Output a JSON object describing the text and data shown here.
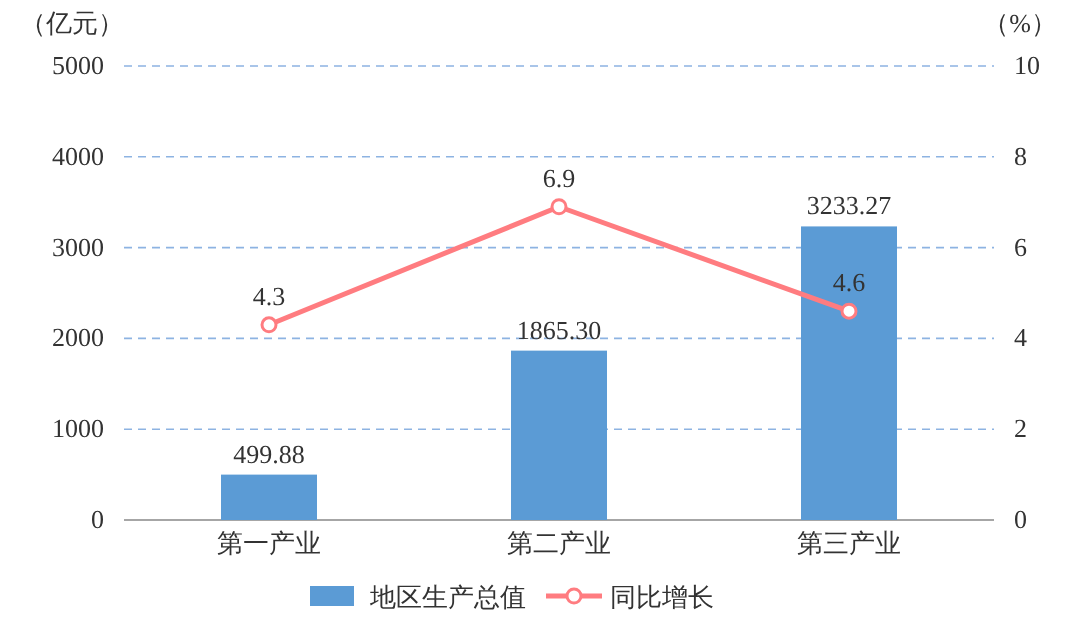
{
  "chart_data": {
    "type": "bar",
    "categories": [
      "第一产业",
      "第二产业",
      "第三产业"
    ],
    "series": [
      {
        "name": "地区生产总值",
        "color": "#5b9bd5",
        "values": [
          499.88,
          1865.3,
          3233.27
        ],
        "value_labels": [
          "499.88",
          "1865.30",
          "3233.27"
        ]
      },
      {
        "name": "同比增长",
        "type": "line",
        "axis": "y2",
        "color": "#ff7c80",
        "values": [
          4.3,
          6.9,
          4.6
        ],
        "value_labels": [
          "4.3",
          "6.9",
          "4.6"
        ]
      }
    ],
    "ylabel": "（亿元）",
    "y2label": "（%）",
    "ylim": [
      0,
      5000
    ],
    "yticks": [
      0,
      1000,
      2000,
      3000,
      4000,
      5000
    ],
    "y2lim": [
      0,
      10
    ],
    "y2ticks": [
      0,
      2,
      4,
      6,
      8,
      10
    ],
    "grid": "y",
    "legend": "bottom",
    "marker": "circle"
  }
}
